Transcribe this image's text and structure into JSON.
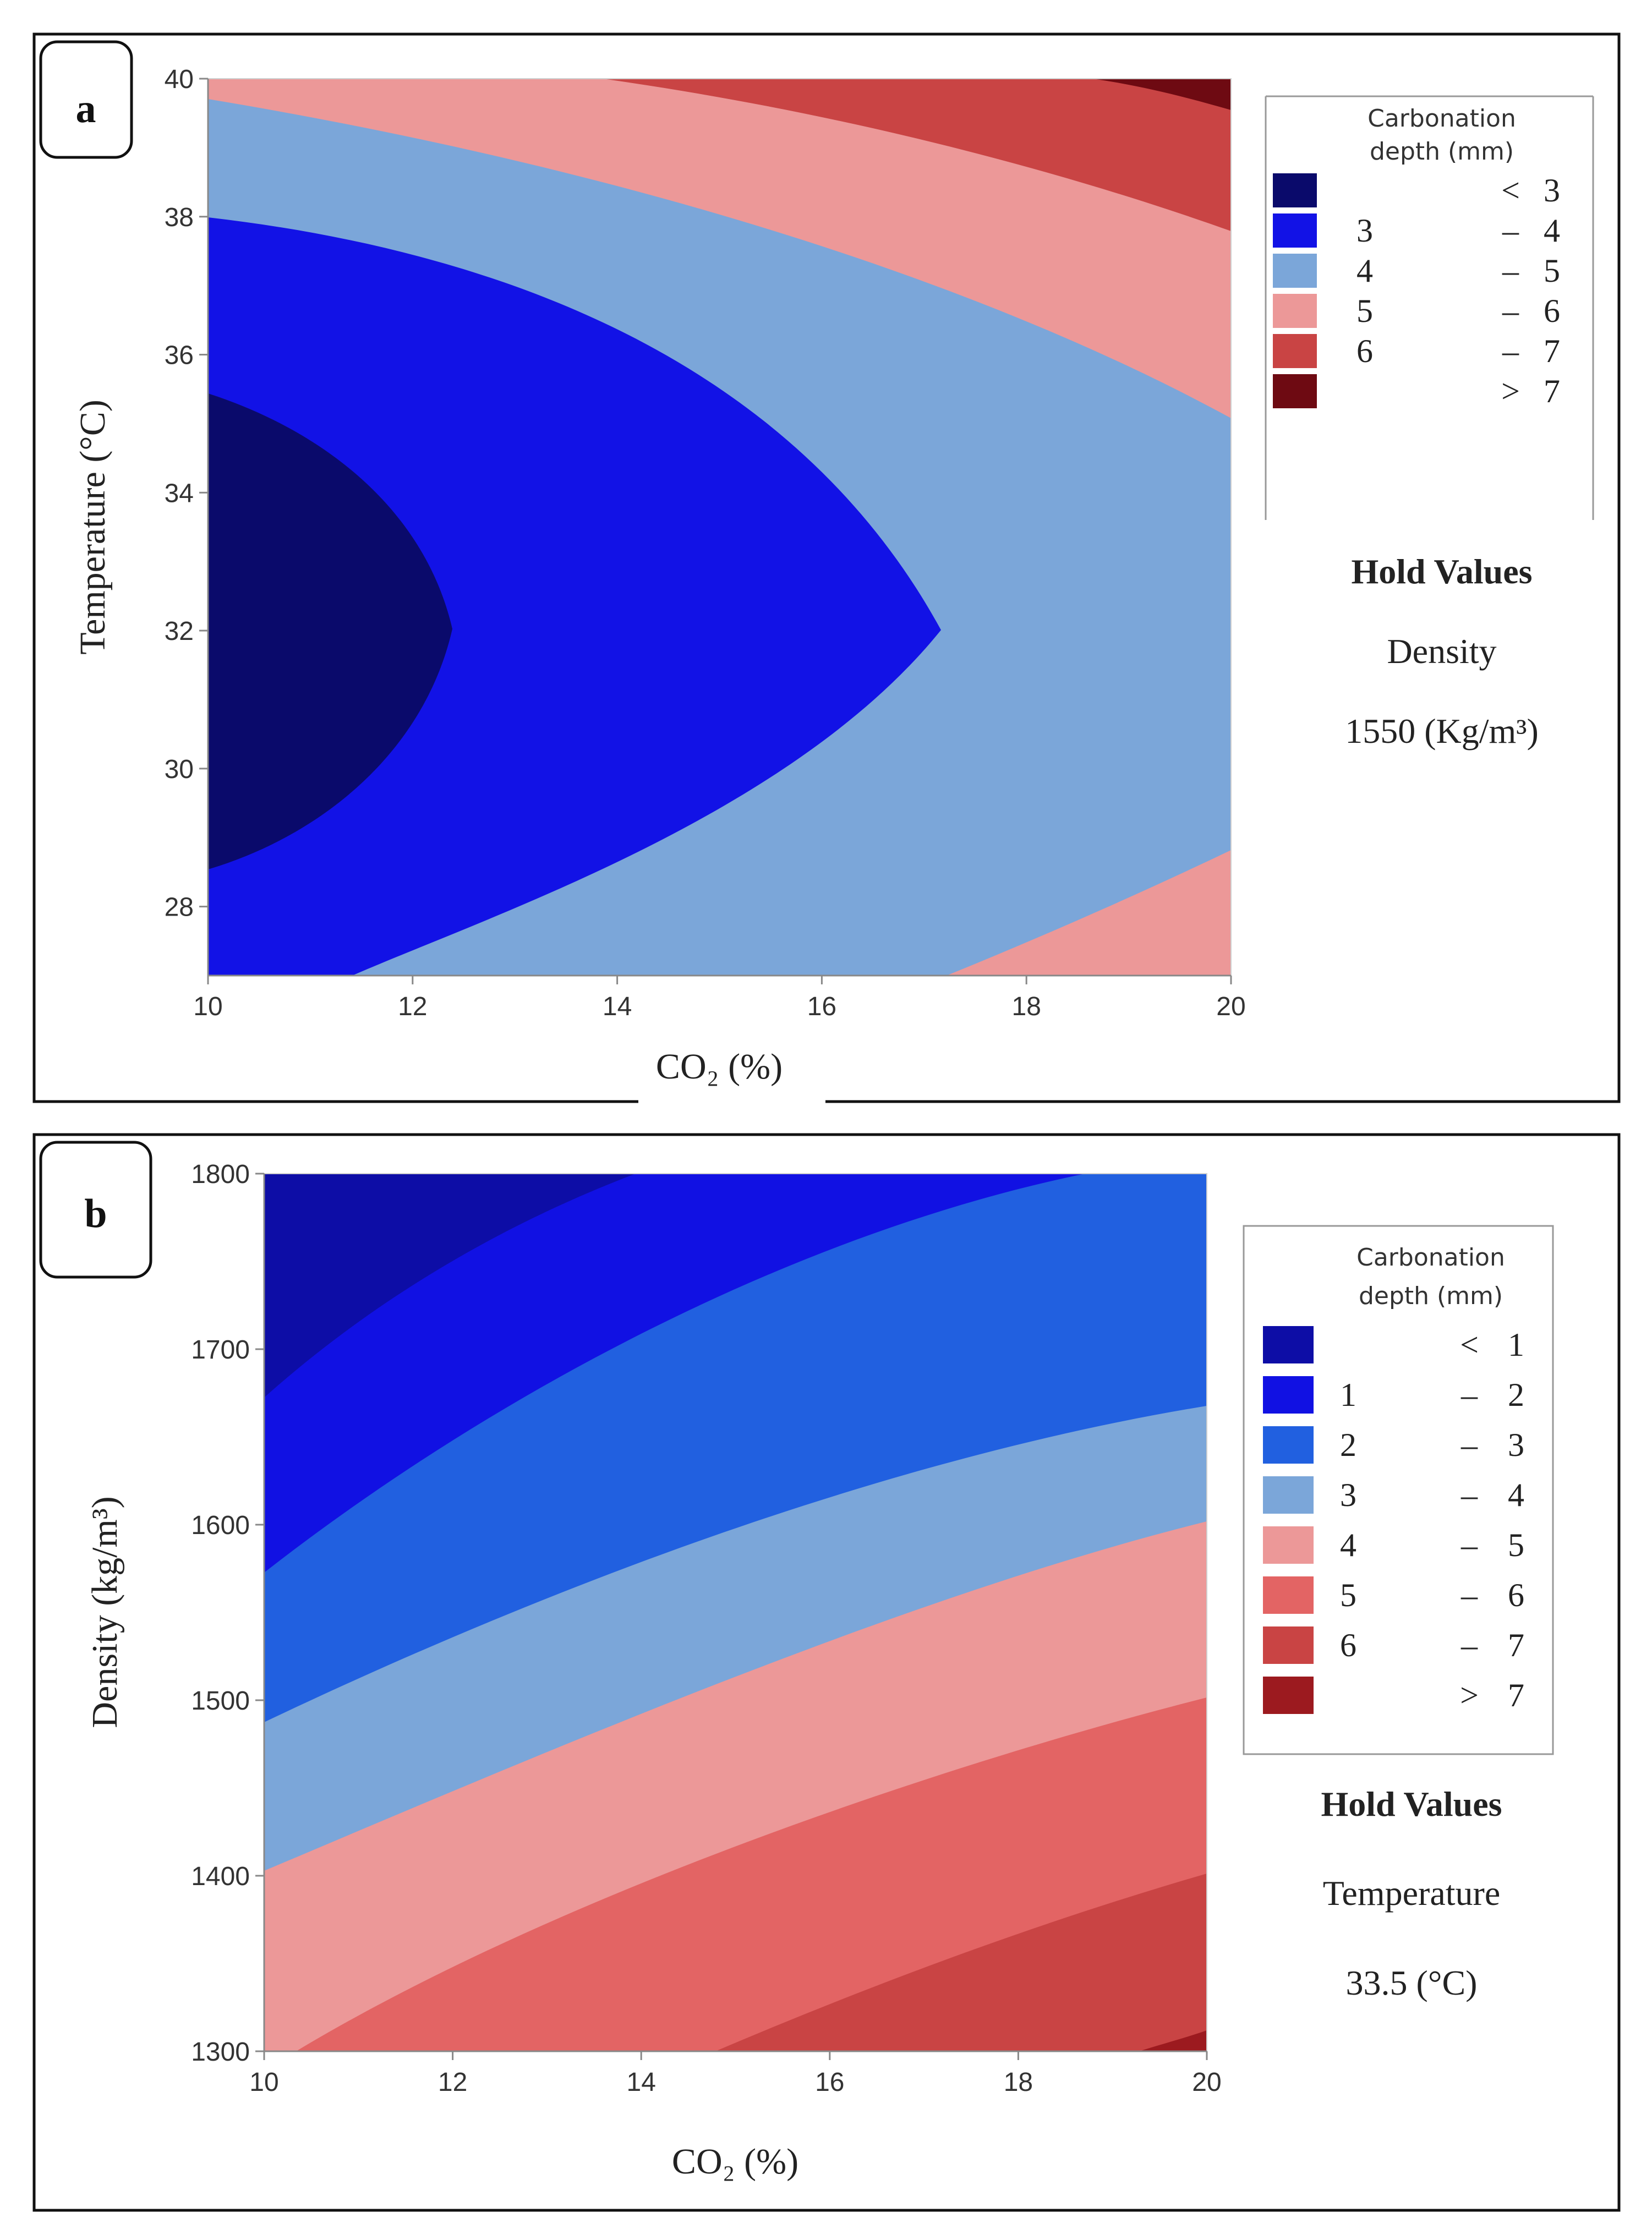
{
  "chart_data": [
    {
      "type": "contour",
      "panel": "a",
      "xlabel": "CO₂ (%)",
      "ylabel": "Temperature (°C)",
      "xlim": [
        10,
        20
      ],
      "ylim": [
        27,
        40
      ],
      "xticks": [
        "10",
        "12",
        "14",
        "16",
        "18",
        "20"
      ],
      "yticks": [
        "28",
        "30",
        "32",
        "34",
        "36",
        "38",
        "40"
      ],
      "legend_title": [
        "Carbonation",
        "depth (mm)"
      ],
      "levels": [
        {
          "lo": "",
          "sep": "<",
          "hi": "3",
          "color": "#0a0a6b"
        },
        {
          "lo": "3",
          "sep": "–",
          "hi": "4",
          "color": "#1212e6"
        },
        {
          "lo": "4",
          "sep": "–",
          "hi": "5",
          "color": "#7ba6d9"
        },
        {
          "lo": "5",
          "sep": "–",
          "hi": "6",
          "color": "#ec9898"
        },
        {
          "lo": "6",
          "sep": "–",
          "hi": "7",
          "color": "#c94444"
        },
        {
          "lo": "",
          "sep": ">",
          "hi": "7",
          "color": "#6e0a12"
        }
      ],
      "hold_title": "Hold Values",
      "hold_name": "Density",
      "hold_value": "1550 (Kg/m³)"
    },
    {
      "type": "contour",
      "panel": "b",
      "xlabel": "CO₂ (%)",
      "ylabel": "Density (kg/m³)",
      "xlim": [
        10,
        20
      ],
      "ylim": [
        1300,
        1800
      ],
      "xticks": [
        "10",
        "12",
        "14",
        "16",
        "18",
        "20"
      ],
      "yticks": [
        "1300",
        "1400",
        "1500",
        "1600",
        "1700",
        "1800"
      ],
      "legend_title": [
        "Carbonation",
        "depth (mm)"
      ],
      "levels": [
        {
          "lo": "",
          "sep": "<",
          "hi": "1",
          "color": "#0d0da6"
        },
        {
          "lo": "1",
          "sep": "–",
          "hi": "2",
          "color": "#1111e3"
        },
        {
          "lo": "2",
          "sep": "–",
          "hi": "3",
          "color": "#2160e0"
        },
        {
          "lo": "3",
          "sep": "–",
          "hi": "4",
          "color": "#7ba6d9"
        },
        {
          "lo": "4",
          "sep": "–",
          "hi": "5",
          "color": "#ec9898"
        },
        {
          "lo": "5",
          "sep": "–",
          "hi": "6",
          "color": "#e36464"
        },
        {
          "lo": "6",
          "sep": "–",
          "hi": "7",
          "color": "#c94444"
        },
        {
          "lo": "",
          "sep": ">",
          "hi": "7",
          "color": "#9c1a1f"
        }
      ],
      "hold_title": "Hold Values",
      "hold_name": "Temperature",
      "hold_value": "33.5 (°C)"
    }
  ]
}
